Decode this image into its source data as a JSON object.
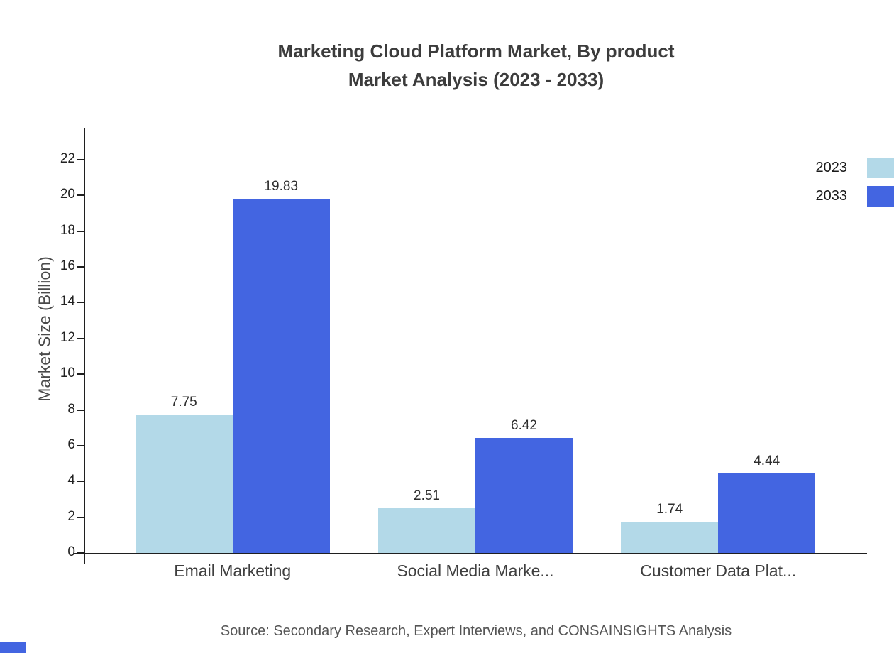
{
  "title": {
    "line1": "Marketing Cloud Platform Market, By product",
    "line2": "Market Analysis (2023 - 2033)"
  },
  "source": "Source: Secondary Research, Expert Interviews, and CONSAINSIGHTS Analysis",
  "colors": {
    "series_2023": "#b3d9e8",
    "series_2033": "#4365e1",
    "axis": "#1f1f1f"
  },
  "chart_data": {
    "type": "bar",
    "title": "Marketing Cloud Platform Market, By product Market Analysis (2023 - 2033)",
    "categories": [
      "Email Marketing",
      "Social Media Marke...",
      "Customer Data Plat..."
    ],
    "series": [
      {
        "name": "2023",
        "color": "#b3d9e8",
        "values": [
          7.75,
          2.51,
          1.74
        ]
      },
      {
        "name": "2033",
        "color": "#4365e1",
        "values": [
          19.83,
          6.42,
          4.44
        ]
      }
    ],
    "xlabel": "",
    "ylabel": "Market Size (Billion)",
    "ylim": [
      0,
      22
    ],
    "ytick_step": 2,
    "yticks": [
      0,
      2,
      4,
      6,
      8,
      10,
      12,
      14,
      16,
      18,
      20,
      22
    ],
    "grid": false,
    "legend_position": "top-right",
    "value_labels": true
  }
}
